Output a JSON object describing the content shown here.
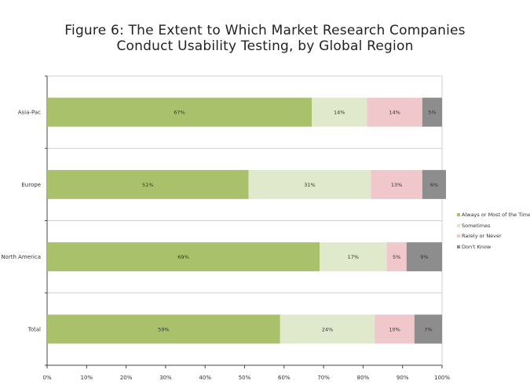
{
  "title_line1": "Figure 6: The Extent to Which Market Research Companies",
  "title_line2": "Conduct Usability Testing, by Global Region",
  "chart_data": {
    "type": "bar",
    "orientation": "horizontal",
    "stacked": true,
    "categories": [
      "Asia-Pac",
      "Europe",
      "North America",
      "Total"
    ],
    "series": [
      {
        "name": "Always or Most of the Time",
        "color": "#a9c16a",
        "values": [
          67,
          51,
          69,
          59
        ],
        "labels": [
          "67%",
          "51%",
          "69%",
          "59%"
        ]
      },
      {
        "name": "Sometimes",
        "color": "#e1e9cd",
        "values": [
          14,
          31,
          17,
          24
        ],
        "labels": [
          "14%",
          "31%",
          "17%",
          "24%"
        ]
      },
      {
        "name": "Rarely or Never",
        "color": "#f0c7ca",
        "values": [
          14,
          13,
          5,
          10
        ],
        "labels": [
          "14%",
          "13%",
          "5%",
          "10%"
        ]
      },
      {
        "name": "Don't Know",
        "color": "#8d8d8d",
        "values": [
          5,
          6,
          9,
          7
        ],
        "labels": [
          "5%",
          "6%",
          "9%",
          "7%"
        ]
      }
    ],
    "xlim": [
      0,
      100
    ],
    "xticks": [
      "0%",
      "10%",
      "20%",
      "30%",
      "40%",
      "50%",
      "60%",
      "70%",
      "80%",
      "90%",
      "100%"
    ],
    "grid": false,
    "legend_position": "right"
  }
}
